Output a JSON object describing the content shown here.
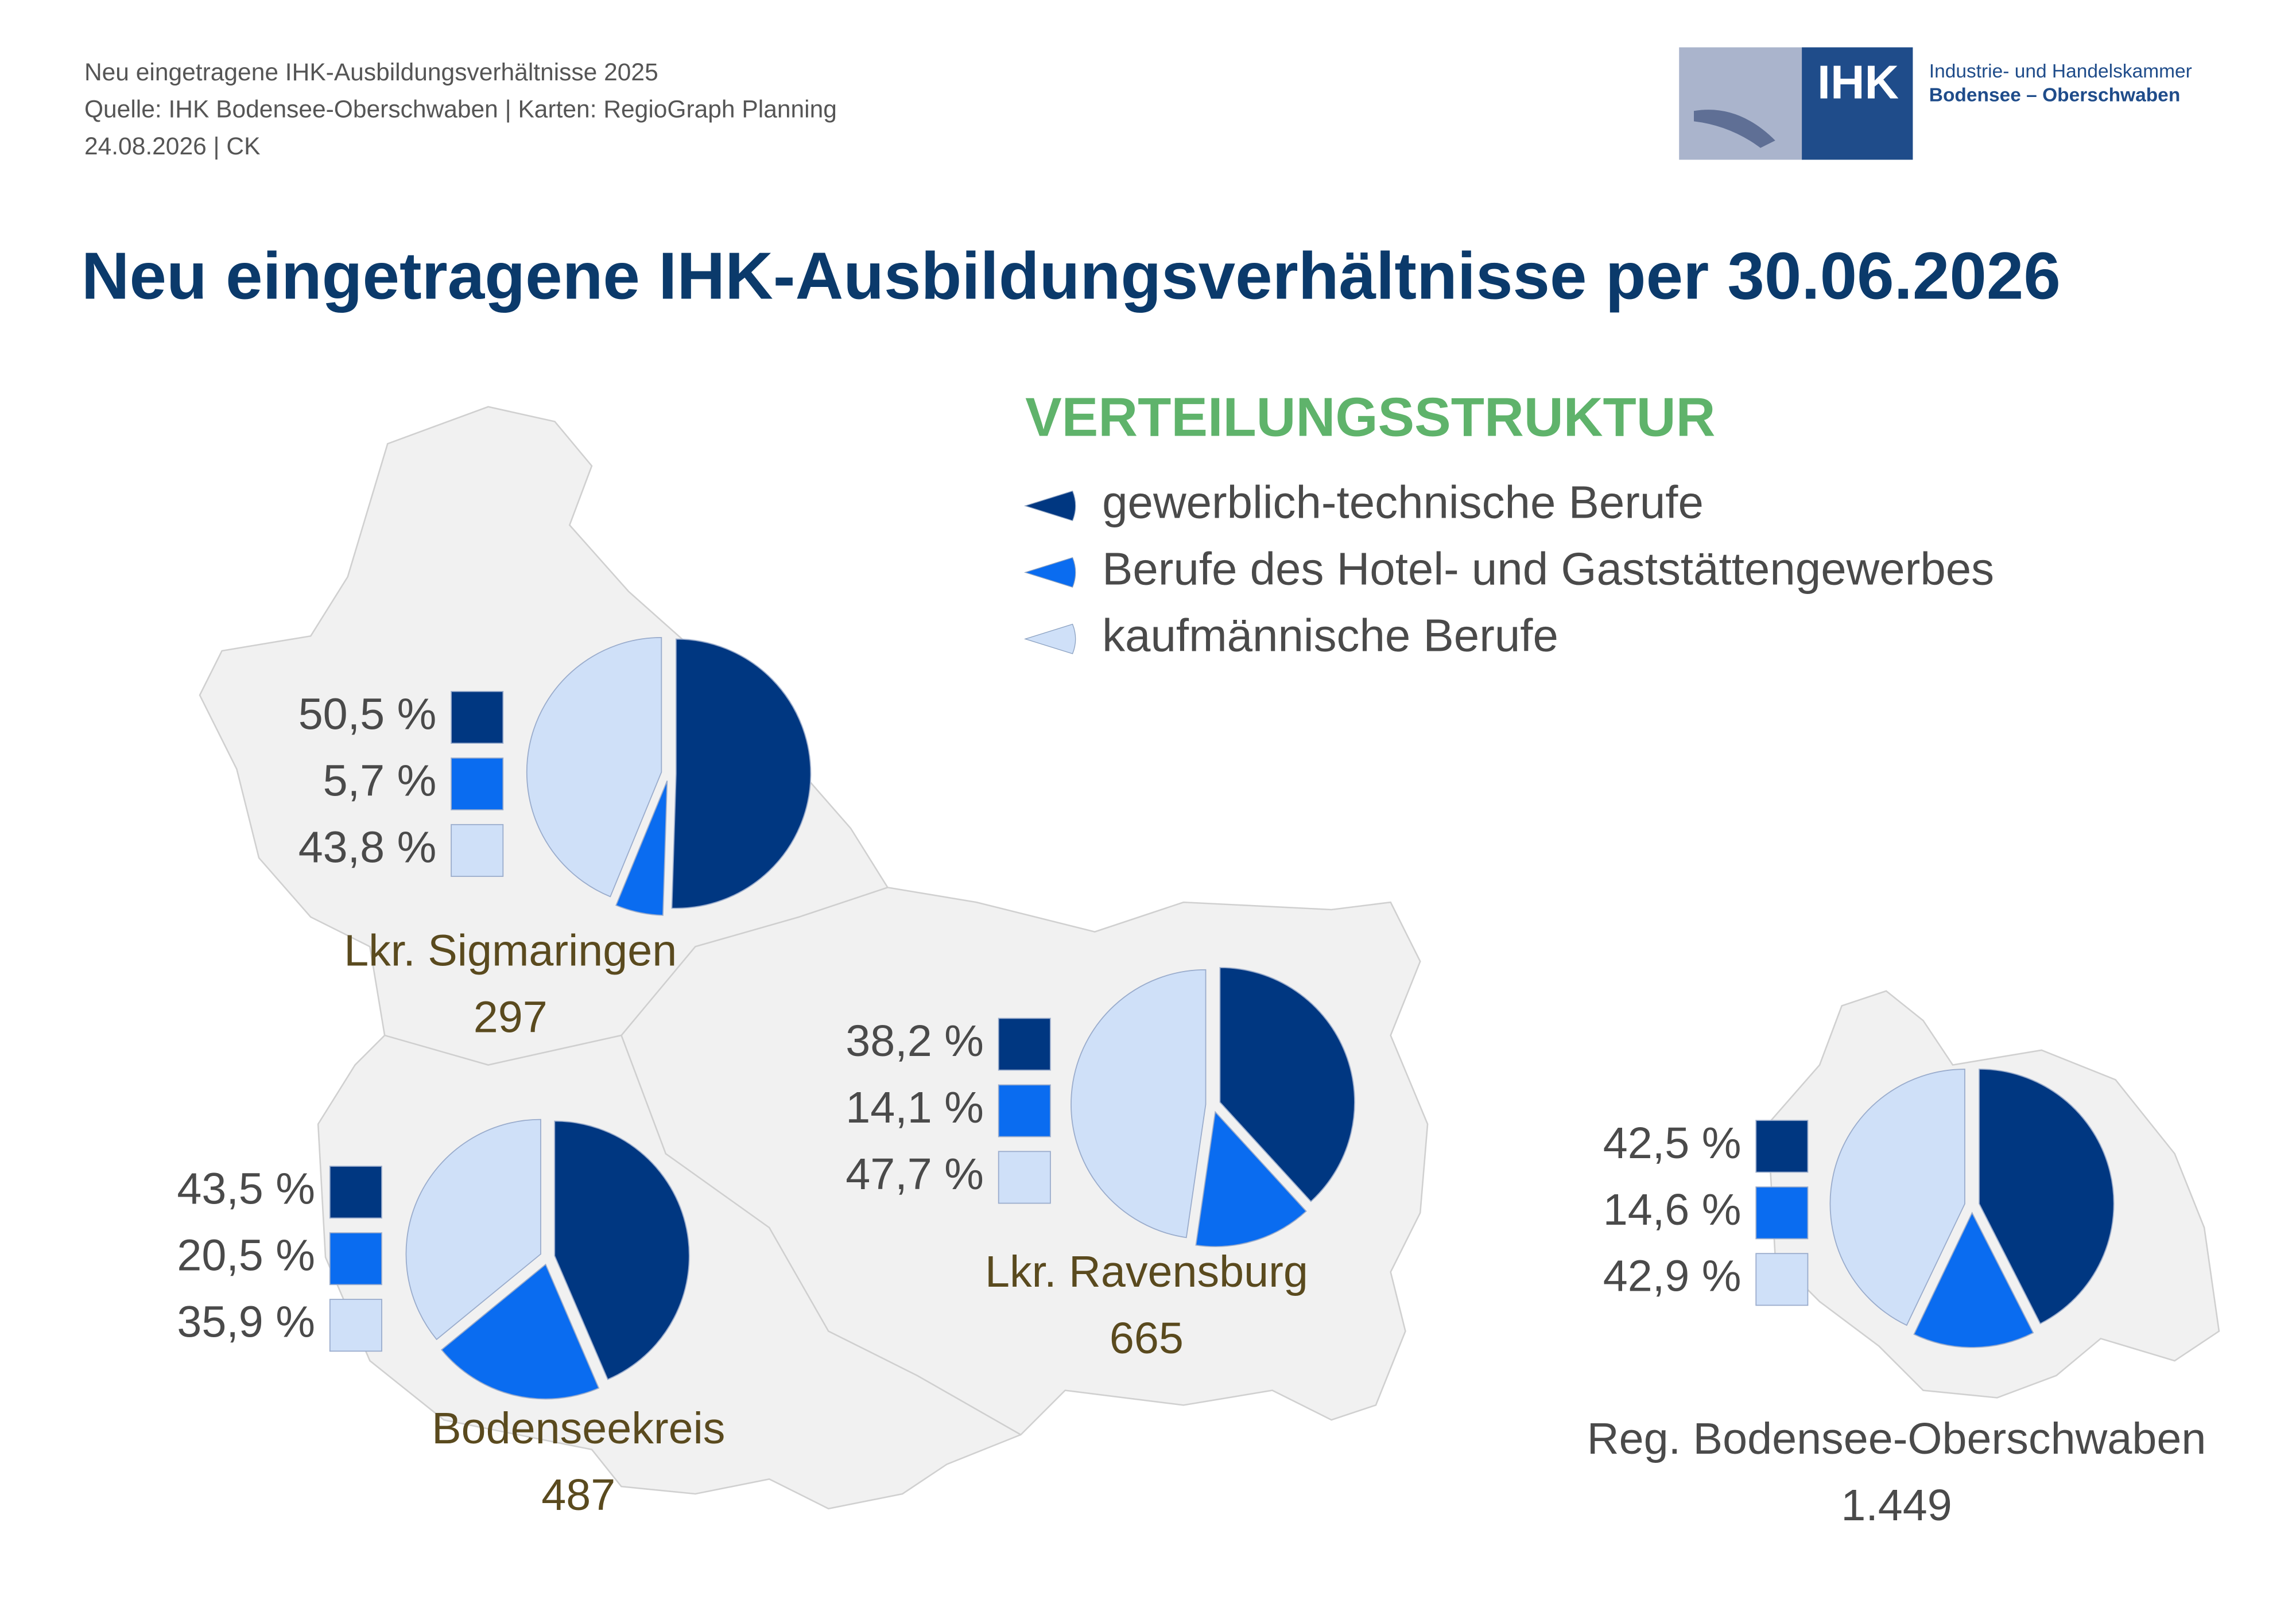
{
  "header": {
    "lines": [
      "Neu eingetragene IHK-Ausbildungsverhältnisse 2025",
      "Quelle: IHK Bodensee-Oberschwaben | Karten: RegioGraph Planning",
      "24.08.2026 | CK"
    ],
    "logo_text": "IHK",
    "logo_org": [
      "Industrie- und Handelskammer",
      "Bodensee – Oberschwaben"
    ]
  },
  "title": "Neu eingetragene IHK-Ausbildungsverhältnisse per 30.06.2026",
  "legend": {
    "title": "VERTEILUNGSSTRUKTUR",
    "items": [
      "gewerblich-technische Berufe",
      "Berufe des Hotel- und Gaststättengewerbes",
      "kaufmännische Berufe"
    ],
    "colors": [
      "#003781",
      "#0a6cf0",
      "#cfe0f8"
    ]
  },
  "chart_data": [
    {
      "type": "pie",
      "title": "Lkr. Sigmaringen",
      "total": 297,
      "values": [
        50.5,
        5.7,
        43.8
      ],
      "value_labels": [
        "50,5 %",
        "5,7 %",
        "43,8 %"
      ]
    },
    {
      "type": "pie",
      "title": "Bodenseekreis",
      "total": 487,
      "values": [
        43.5,
        20.5,
        35.9
      ],
      "value_labels": [
        "43,5 %",
        "20,5 %",
        "35,9 %"
      ]
    },
    {
      "type": "pie",
      "title": "Lkr. Ravensburg",
      "total": 665,
      "values": [
        38.2,
        14.1,
        47.7
      ],
      "value_labels": [
        "38,2 %",
        "14,1 %",
        "47,7 %"
      ]
    },
    {
      "type": "pie",
      "title": "Reg. Bodensee-Oberschwaben",
      "total": {
        "value": 1449,
        "label": "1.449"
      },
      "values": [
        42.5,
        14.6,
        42.9
      ],
      "value_labels": [
        "42,5 %",
        "14,6 %",
        "42,9 %"
      ]
    }
  ]
}
